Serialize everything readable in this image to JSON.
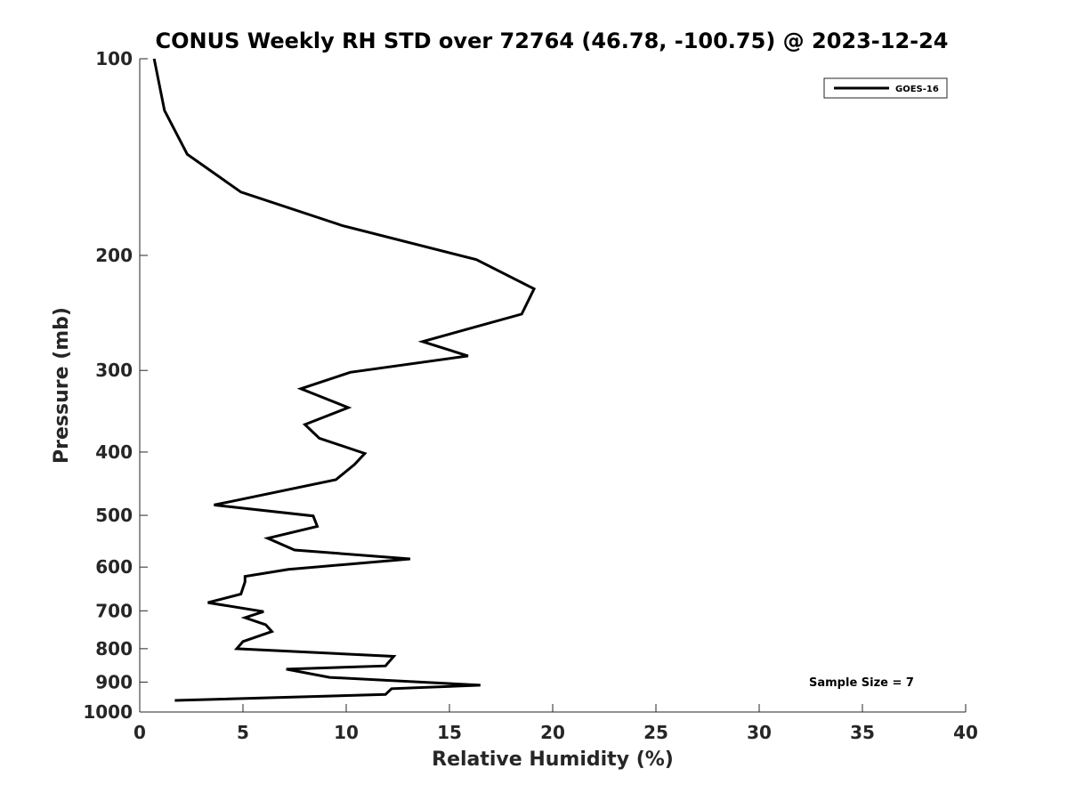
{
  "chart_data": {
    "type": "line",
    "title": "CONUS Weekly RH STD over 72764 (46.78, -100.75) @ 2023-12-24",
    "xlabel": "Relative Humidity (%)",
    "ylabel": "Pressure (mb)",
    "xlim": [
      0,
      40
    ],
    "ylim": [
      100,
      1000
    ],
    "y_scale": "log",
    "y_reversed": true,
    "x_ticks": [
      0,
      5,
      10,
      15,
      20,
      25,
      30,
      35,
      40
    ],
    "x_tick_labels": [
      "0",
      "5",
      "10",
      "15",
      "20",
      "25",
      "30",
      "35",
      "40"
    ],
    "y_ticks": [
      100,
      200,
      300,
      400,
      500,
      600,
      700,
      800,
      900,
      1000
    ],
    "y_tick_labels": [
      "100",
      "200",
      "300",
      "400",
      "500",
      "600",
      "700",
      "800",
      "900",
      "1000"
    ],
    "grid": false,
    "legend_position": "top-right",
    "annotation": "Sample Size = 7",
    "series": [
      {
        "name": "GOES-16",
        "color": "#000000",
        "points": [
          [
            0.7,
            100
          ],
          [
            1.2,
            120
          ],
          [
            2.3,
            140
          ],
          [
            4.9,
            160
          ],
          [
            9.8,
            180
          ],
          [
            16.3,
            203
          ],
          [
            19.1,
            225
          ],
          [
            18.5,
            246
          ],
          [
            13.7,
            271
          ],
          [
            15.9,
            285
          ],
          [
            10.2,
            302
          ],
          [
            7.8,
            320
          ],
          [
            10.1,
            342
          ],
          [
            8.0,
            363
          ],
          [
            8.7,
            381
          ],
          [
            10.9,
            402
          ],
          [
            10.4,
            418
          ],
          [
            9.5,
            441
          ],
          [
            3.6,
            482
          ],
          [
            8.4,
            501
          ],
          [
            8.6,
            520
          ],
          [
            6.2,
            542
          ],
          [
            7.5,
            565
          ],
          [
            13.1,
            583
          ],
          [
            7.2,
            605
          ],
          [
            5.1,
            620
          ],
          [
            5.1,
            632
          ],
          [
            4.9,
            660
          ],
          [
            3.3,
            680
          ],
          [
            6.0,
            702
          ],
          [
            5.1,
            717
          ],
          [
            6.1,
            735
          ],
          [
            6.4,
            753
          ],
          [
            5.0,
            780
          ],
          [
            4.7,
            800
          ],
          [
            12.3,
            822
          ],
          [
            11.9,
            850
          ],
          [
            7.1,
            860
          ],
          [
            9.2,
            885
          ],
          [
            16.5,
            910
          ],
          [
            12.2,
            921
          ],
          [
            11.9,
            940
          ],
          [
            1.7,
            960
          ]
        ]
      }
    ]
  }
}
